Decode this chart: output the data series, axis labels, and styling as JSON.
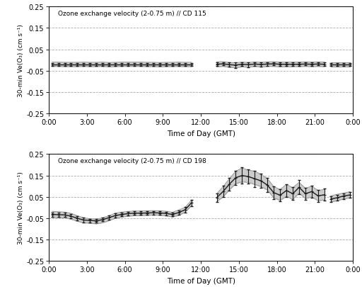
{
  "title1": "Ozone exchange velocity (2-0.75 m) // CD 115",
  "title2": "Ozone exchange velocity (2-0.75 m) // CD 198",
  "ylabel": "30-min Ve(O₃) (cm s⁻¹)",
  "xlabel": "Time of Day (GMT)",
  "ylim": [
    -0.25,
    0.25
  ],
  "yticks": [
    -0.25,
    -0.15,
    -0.05,
    0.05,
    0.15,
    0.25
  ],
  "ytick_labels": [
    "-0.25",
    "-0.15",
    "-0.05",
    "0.05",
    "0.15",
    "0.25"
  ],
  "xtick_labels": [
    "0:00",
    "3:00",
    "6:00",
    "9:00",
    "12:00",
    "15:00",
    "18:00",
    "21:00",
    "0:00"
  ],
  "xtick_positions": [
    0,
    3,
    6,
    9,
    12,
    15,
    18,
    21,
    24
  ],
  "mean_color": "#1a1a1a",
  "band_fill_color": "#cccccc",
  "band_line_color": "#999999",
  "grid_color": "#aaaaaa",
  "plot1": {
    "times_seg1": [
      0.25,
      0.75,
      1.25,
      1.75,
      2.25,
      2.75,
      3.25,
      3.75,
      4.25,
      4.75,
      5.25,
      5.75,
      6.25,
      6.75,
      7.25,
      7.75,
      8.25,
      8.75,
      9.25,
      9.75,
      10.25,
      10.75,
      11.25
    ],
    "mean_seg1": [
      -0.02,
      -0.02,
      -0.02,
      -0.02,
      -0.02,
      -0.02,
      -0.02,
      -0.02,
      -0.02,
      -0.02,
      -0.02,
      -0.02,
      -0.02,
      -0.02,
      -0.02,
      -0.02,
      -0.02,
      -0.02,
      -0.02,
      -0.02,
      -0.02,
      -0.02,
      -0.02
    ],
    "upper_seg1": [
      -0.01,
      -0.01,
      -0.011,
      -0.011,
      -0.011,
      -0.01,
      -0.011,
      -0.011,
      -0.01,
      -0.012,
      -0.011,
      -0.01,
      -0.01,
      -0.01,
      -0.01,
      -0.011,
      -0.011,
      -0.012,
      -0.011,
      -0.011,
      -0.01,
      -0.011,
      -0.011
    ],
    "lower_seg1": [
      -0.03,
      -0.03,
      -0.031,
      -0.031,
      -0.031,
      -0.03,
      -0.031,
      -0.031,
      -0.03,
      -0.032,
      -0.031,
      -0.03,
      -0.03,
      -0.03,
      -0.03,
      -0.031,
      -0.031,
      -0.032,
      -0.031,
      -0.031,
      -0.03,
      -0.031,
      -0.031
    ],
    "err_seg1": [
      0.007,
      0.007,
      0.007,
      0.007,
      0.007,
      0.007,
      0.007,
      0.007,
      0.007,
      0.007,
      0.007,
      0.007,
      0.007,
      0.007,
      0.007,
      0.007,
      0.007,
      0.007,
      0.007,
      0.007,
      0.007,
      0.007,
      0.007
    ],
    "times_seg2": [
      13.25,
      13.75,
      14.25,
      14.75,
      15.25,
      15.75,
      16.25,
      16.75,
      17.25,
      17.75,
      18.25,
      18.75,
      19.25,
      19.75,
      20.25,
      20.75,
      21.25,
      21.75
    ],
    "mean_seg2": [
      -0.02,
      -0.018,
      -0.022,
      -0.024,
      -0.02,
      -0.022,
      -0.019,
      -0.021,
      -0.019,
      -0.018,
      -0.02,
      -0.02,
      -0.02,
      -0.02,
      -0.019,
      -0.02,
      -0.019,
      -0.02
    ],
    "upper_seg2": [
      -0.009,
      -0.008,
      -0.012,
      -0.013,
      -0.01,
      -0.012,
      -0.009,
      -0.011,
      -0.009,
      -0.008,
      -0.01,
      -0.01,
      -0.01,
      -0.01,
      -0.009,
      -0.01,
      -0.009,
      -0.01
    ],
    "lower_seg2": [
      -0.032,
      -0.03,
      -0.034,
      -0.037,
      -0.032,
      -0.034,
      -0.03,
      -0.033,
      -0.03,
      -0.03,
      -0.032,
      -0.032,
      -0.031,
      -0.031,
      -0.03,
      -0.031,
      -0.03,
      -0.031
    ],
    "err_seg2": [
      0.009,
      0.008,
      0.01,
      0.014,
      0.009,
      0.011,
      0.008,
      0.01,
      0.008,
      0.007,
      0.008,
      0.008,
      0.008,
      0.008,
      0.007,
      0.008,
      0.007,
      0.008
    ],
    "times_seg3": [
      22.25,
      22.75,
      23.25,
      23.75
    ],
    "mean_seg3": [
      -0.02,
      -0.02,
      -0.02,
      -0.02
    ],
    "upper_seg3": [
      -0.01,
      -0.01,
      -0.01,
      -0.01
    ],
    "lower_seg3": [
      -0.03,
      -0.03,
      -0.03,
      -0.03
    ],
    "err_seg3": [
      0.007,
      0.007,
      0.007,
      0.007
    ]
  },
  "plot2": {
    "times_seg1": [
      0.25,
      0.75,
      1.25,
      1.75,
      2.25,
      2.75,
      3.25,
      3.75,
      4.25,
      4.75,
      5.25,
      5.75,
      6.25,
      6.75,
      7.25,
      7.75,
      8.25,
      8.75,
      9.25,
      9.75,
      10.25,
      10.75,
      11.25
    ],
    "mean_seg1": [
      -0.032,
      -0.033,
      -0.034,
      -0.04,
      -0.05,
      -0.058,
      -0.06,
      -0.062,
      -0.056,
      -0.047,
      -0.037,
      -0.032,
      -0.028,
      -0.026,
      -0.026,
      -0.025,
      -0.024,
      -0.025,
      -0.027,
      -0.032,
      -0.023,
      -0.01,
      0.022
    ],
    "upper_seg1": [
      -0.018,
      -0.019,
      -0.021,
      -0.027,
      -0.038,
      -0.048,
      -0.052,
      -0.054,
      -0.048,
      -0.038,
      -0.026,
      -0.021,
      -0.018,
      -0.016,
      -0.016,
      -0.015,
      -0.014,
      -0.015,
      -0.017,
      -0.022,
      -0.011,
      0.001,
      0.034
    ],
    "lower_seg1": [
      -0.046,
      -0.047,
      -0.048,
      -0.054,
      -0.064,
      -0.071,
      -0.073,
      -0.076,
      -0.071,
      -0.061,
      -0.05,
      -0.044,
      -0.04,
      -0.038,
      -0.038,
      -0.036,
      -0.035,
      -0.036,
      -0.038,
      -0.044,
      -0.036,
      -0.022,
      0.009
    ],
    "err_seg1": [
      0.01,
      0.01,
      0.01,
      0.01,
      0.01,
      0.01,
      0.008,
      0.009,
      0.008,
      0.009,
      0.009,
      0.009,
      0.008,
      0.008,
      0.008,
      0.008,
      0.008,
      0.008,
      0.008,
      0.008,
      0.01,
      0.013,
      0.014
    ],
    "times_seg2": [
      13.25,
      13.75,
      14.25,
      14.75,
      15.25,
      15.75,
      16.25,
      16.75,
      17.25,
      17.75,
      18.25,
      18.75,
      19.25,
      19.75,
      20.25,
      20.75,
      21.25,
      21.75
    ],
    "mean_seg2": [
      0.047,
      0.075,
      0.11,
      0.14,
      0.15,
      0.145,
      0.135,
      0.125,
      0.105,
      0.07,
      0.058,
      0.08,
      0.065,
      0.095,
      0.065,
      0.075,
      0.055,
      0.06
    ],
    "upper_seg2": [
      0.065,
      0.098,
      0.135,
      0.17,
      0.185,
      0.175,
      0.17,
      0.155,
      0.135,
      0.098,
      0.085,
      0.108,
      0.093,
      0.118,
      0.09,
      0.1,
      0.08,
      0.085
    ],
    "lower_seg2": [
      0.028,
      0.05,
      0.083,
      0.112,
      0.12,
      0.118,
      0.108,
      0.098,
      0.082,
      0.046,
      0.033,
      0.053,
      0.038,
      0.068,
      0.042,
      0.05,
      0.032,
      0.036
    ],
    "err_seg2": [
      0.02,
      0.026,
      0.03,
      0.033,
      0.038,
      0.033,
      0.038,
      0.033,
      0.033,
      0.03,
      0.028,
      0.03,
      0.03,
      0.033,
      0.028,
      0.028,
      0.028,
      0.028
    ],
    "times_seg3": [
      22.25,
      22.75,
      23.25,
      23.75
    ],
    "mean_seg3": [
      0.04,
      0.046,
      0.054,
      0.059
    ],
    "upper_seg3": [
      0.055,
      0.062,
      0.068,
      0.074
    ],
    "lower_seg3": [
      0.026,
      0.032,
      0.04,
      0.046
    ],
    "err_seg3": [
      0.012,
      0.013,
      0.013,
      0.013
    ]
  }
}
